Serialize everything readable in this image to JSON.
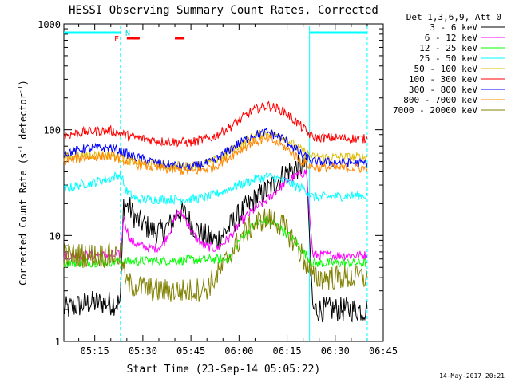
{
  "chart_data": {
    "type": "line",
    "title": "HESSI Observing Summary Count Rates, Corrected",
    "xlabel": "Start Time (23-Sep-14 05:05:22)",
    "ylabel_main": "Corrected Count Rate (s",
    "ylabel_exp1": "-1",
    "ylabel_mid": " detector",
    "ylabel_exp2": "-1",
    "ylabel_end": ")",
    "yscale": "log",
    "ylim": [
      1,
      1000
    ],
    "xlim": [
      "05:05:22",
      "06:45:00"
    ],
    "x_ticks": [
      "05:15",
      "05:30",
      "05:45",
      "06:00",
      "06:15",
      "06:30",
      "06:45"
    ],
    "y_ticks": [
      "1",
      "10",
      "100",
      "1000"
    ],
    "legend_header": "Det 1,3,6,9, Att 0",
    "legend_position": "right",
    "flag_labels": {
      "night": "N",
      "flare": "F"
    },
    "footer_date": "14-May-2017 20:21",
    "series": [
      {
        "name": "3 - 6 keV",
        "color": "#000000",
        "points": [
          [
            "05:05:22",
            2
          ],
          [
            "05:13",
            2.3
          ],
          [
            "05:23",
            2.3
          ],
          [
            "05:24",
            20
          ],
          [
            "05:26",
            18
          ],
          [
            "05:28",
            14
          ],
          [
            "05:30",
            13
          ],
          [
            "05:33",
            11
          ],
          [
            "05:36",
            11
          ],
          [
            "05:39",
            13
          ],
          [
            "05:41",
            17
          ],
          [
            "05:43",
            16
          ],
          [
            "05:46",
            12
          ],
          [
            "05:49",
            10
          ],
          [
            "05:53",
            9
          ],
          [
            "05:57",
            12
          ],
          [
            "06:01",
            17
          ],
          [
            "06:05",
            22
          ],
          [
            "06:09",
            27
          ],
          [
            "06:12",
            33
          ],
          [
            "06:15",
            40
          ],
          [
            "06:19",
            45
          ],
          [
            "06:21",
            47
          ],
          [
            "06:23",
            2
          ],
          [
            "06:40",
            2
          ]
        ]
      },
      {
        "name": "6 - 12 keV",
        "color": "#ff00ff",
        "points": [
          [
            "05:05:22",
            6.5
          ],
          [
            "05:23",
            6.5
          ],
          [
            "05:24",
            15
          ],
          [
            "05:26",
            9
          ],
          [
            "05:29",
            8
          ],
          [
            "05:33",
            7.5
          ],
          [
            "05:36",
            8
          ],
          [
            "05:39",
            12
          ],
          [
            "05:41",
            17
          ],
          [
            "05:43",
            15
          ],
          [
            "05:46",
            10
          ],
          [
            "05:49",
            8
          ],
          [
            "05:53",
            7.5
          ],
          [
            "05:57",
            9.5
          ],
          [
            "06:01",
            14
          ],
          [
            "06:05",
            18
          ],
          [
            "06:09",
            22
          ],
          [
            "06:12",
            27
          ],
          [
            "06:15",
            33
          ],
          [
            "06:19",
            38
          ],
          [
            "06:21",
            40
          ],
          [
            "06:23",
            6.5
          ],
          [
            "06:40",
            6.5
          ]
        ]
      },
      {
        "name": "12 - 25 keV",
        "color": "#00ff00",
        "points": [
          [
            "05:05:22",
            5.5
          ],
          [
            "05:57",
            6
          ],
          [
            "06:00",
            9
          ],
          [
            "06:04",
            12
          ],
          [
            "06:08",
            14
          ],
          [
            "06:11",
            13
          ],
          [
            "06:14",
            11
          ],
          [
            "06:18",
            8.5
          ],
          [
            "06:21",
            6.5
          ],
          [
            "06:23",
            5.5
          ],
          [
            "06:40",
            5.5
          ]
        ]
      },
      {
        "name": "25 - 50 keV",
        "color": "#00ffff",
        "points": [
          [
            "05:05:22",
            27
          ],
          [
            "05:10",
            30
          ],
          [
            "05:15",
            32
          ],
          [
            "05:20",
            35
          ],
          [
            "05:23",
            38
          ],
          [
            "05:25",
            26
          ],
          [
            "05:28",
            22
          ],
          [
            "05:35",
            22
          ],
          [
            "05:45",
            22
          ],
          [
            "05:50",
            23
          ],
          [
            "05:55",
            26
          ],
          [
            "06:00",
            30
          ],
          [
            "06:05",
            34
          ],
          [
            "06:09",
            36
          ],
          [
            "06:13",
            34
          ],
          [
            "06:17",
            30
          ],
          [
            "06:21",
            27
          ],
          [
            "06:23",
            23
          ],
          [
            "06:40",
            24
          ]
        ]
      },
      {
        "name": "50 - 100 keV",
        "color": "#ddbb00",
        "points": [
          [
            "05:05:22",
            55
          ],
          [
            "05:12",
            58
          ],
          [
            "05:20",
            58
          ],
          [
            "05:27",
            50
          ],
          [
            "05:35",
            46
          ],
          [
            "05:45",
            45
          ],
          [
            "05:52",
            50
          ],
          [
            "05:58",
            65
          ],
          [
            "06:04",
            85
          ],
          [
            "06:09",
            95
          ],
          [
            "06:14",
            85
          ],
          [
            "06:19",
            65
          ],
          [
            "06:23",
            55
          ],
          [
            "06:40",
            55
          ]
        ]
      },
      {
        "name": "100 - 300 keV",
        "color": "#ff0000",
        "points": [
          [
            "05:05:22",
            88
          ],
          [
            "05:12",
            96
          ],
          [
            "05:20",
            98
          ],
          [
            "05:27",
            85
          ],
          [
            "05:35",
            78
          ],
          [
            "05:45",
            76
          ],
          [
            "05:52",
            85
          ],
          [
            "05:58",
            110
          ],
          [
            "06:04",
            150
          ],
          [
            "06:09",
            170
          ],
          [
            "06:14",
            150
          ],
          [
            "06:19",
            110
          ],
          [
            "06:23",
            85
          ],
          [
            "06:40",
            82
          ]
        ]
      },
      {
        "name": "300 - 800 keV",
        "color": "#0000ff",
        "points": [
          [
            "05:05:22",
            60
          ],
          [
            "05:12",
            66
          ],
          [
            "05:20",
            68
          ],
          [
            "05:27",
            56
          ],
          [
            "05:35",
            48
          ],
          [
            "05:45",
            44
          ],
          [
            "05:52",
            50
          ],
          [
            "05:58",
            68
          ],
          [
            "06:04",
            88
          ],
          [
            "06:09",
            95
          ],
          [
            "06:14",
            82
          ],
          [
            "06:19",
            60
          ],
          [
            "06:23",
            50
          ],
          [
            "06:40",
            48
          ]
        ]
      },
      {
        "name": "800 - 7000 keV",
        "color": "#ff8800",
        "points": [
          [
            "05:05:22",
            50
          ],
          [
            "05:12",
            55
          ],
          [
            "05:20",
            57
          ],
          [
            "05:27",
            48
          ],
          [
            "05:35",
            43
          ],
          [
            "05:45",
            40
          ],
          [
            "05:52",
            44
          ],
          [
            "05:58",
            58
          ],
          [
            "06:04",
            76
          ],
          [
            "06:09",
            82
          ],
          [
            "06:14",
            70
          ],
          [
            "06:19",
            52
          ],
          [
            "06:23",
            44
          ],
          [
            "06:40",
            43
          ]
        ]
      },
      {
        "name": "7000 - 20000 keV",
        "color": "#808000",
        "points": [
          [
            "05:05:22",
            6.5
          ],
          [
            "05:23",
            6.5
          ],
          [
            "05:25",
            3.5
          ],
          [
            "05:35",
            3.0
          ],
          [
            "05:45",
            3.0
          ],
          [
            "05:50",
            3.2
          ],
          [
            "05:54",
            4.5
          ],
          [
            "05:57",
            6.5
          ],
          [
            "06:01",
            10
          ],
          [
            "06:05",
            13
          ],
          [
            "06:09",
            14.5
          ],
          [
            "06:12",
            13.5
          ],
          [
            "06:15",
            11
          ],
          [
            "06:18",
            8
          ],
          [
            "06:21",
            5.5
          ],
          [
            "06:23",
            4
          ],
          [
            "06:40",
            4
          ]
        ]
      }
    ],
    "night_intervals": [
      [
        "05:05:22",
        "05:23"
      ],
      [
        "06:22",
        "06:40"
      ]
    ],
    "flare_intervals": [
      [
        "05:25",
        "05:29"
      ],
      [
        "05:40",
        "05:43"
      ]
    ],
    "vertical_markers": [
      {
        "time": "05:23",
        "color": "#00ffff",
        "style": "dashed"
      },
      {
        "time": "06:22",
        "color": "#00ffff",
        "style": "solid"
      },
      {
        "time": "06:40",
        "color": "#00ffff",
        "style": "dashed"
      }
    ]
  }
}
